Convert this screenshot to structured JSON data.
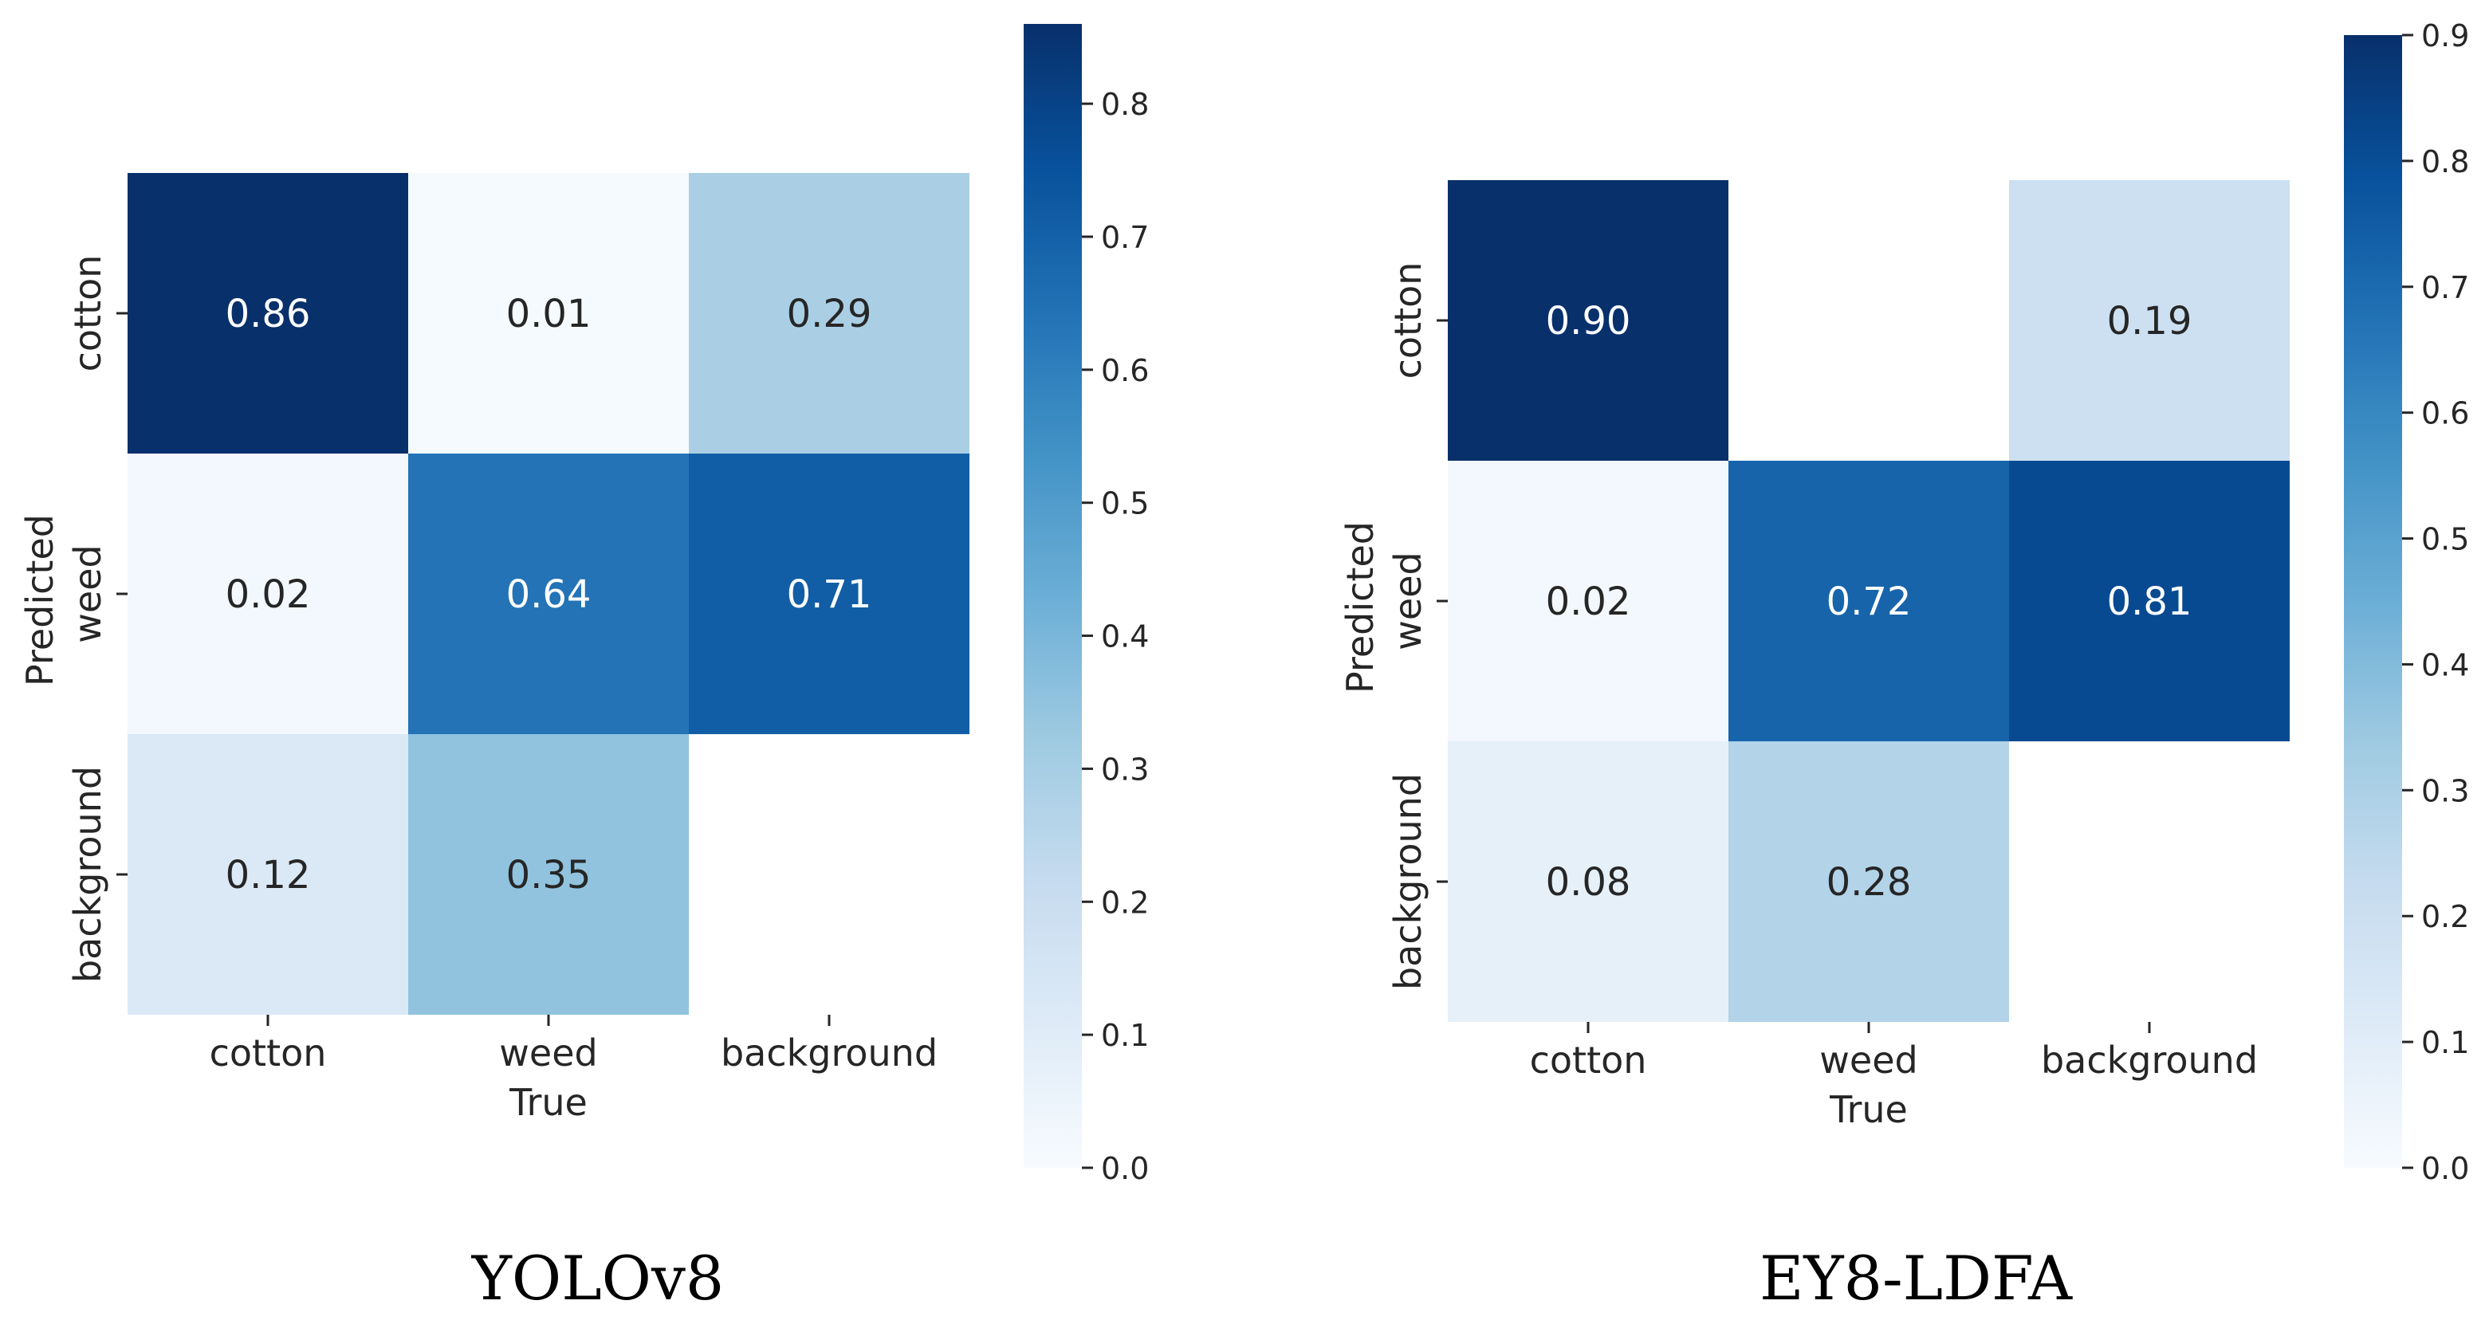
{
  "figure": {
    "panels": [
      {
        "caption": "YOLOv8"
      },
      {
        "caption": "EY8-LDFA"
      }
    ]
  },
  "colors": {
    "cmap": [
      "#f7fbff",
      "#deebf7",
      "#c6dbef",
      "#9ecae1",
      "#6baed6",
      "#4292c6",
      "#2171b5",
      "#08519c",
      "#08306b"
    ],
    "text_dark": "#262626",
    "text_light": "#ffffff",
    "axis": "#262626",
    "background": "#ffffff"
  },
  "chart_data": [
    {
      "type": "heatmap",
      "title": "YOLOv8",
      "xlabel": "True",
      "ylabel": "Predicted",
      "x_categories": [
        "cotton",
        "weed",
        "background"
      ],
      "y_categories": [
        "cotton",
        "weed",
        "background"
      ],
      "values": [
        [
          0.86,
          0.01,
          0.29
        ],
        [
          0.02,
          0.64,
          0.71
        ],
        [
          0.12,
          0.35,
          null
        ]
      ],
      "cell_labels": [
        [
          "0.86",
          "0.01",
          "0.29"
        ],
        [
          "0.02",
          "0.64",
          "0.71"
        ],
        [
          "0.12",
          "0.35",
          ""
        ]
      ],
      "colorbar": {
        "vmin": 0.0,
        "vmax": 0.86,
        "ticks": [
          0.0,
          0.1,
          0.2,
          0.3,
          0.4,
          0.5,
          0.6,
          0.7,
          0.8
        ],
        "tick_labels": [
          "0.0",
          "0.1",
          "0.2",
          "0.3",
          "0.4",
          "0.5",
          "0.6",
          "0.7",
          "0.8"
        ]
      }
    },
    {
      "type": "heatmap",
      "title": "EY8-LDFA",
      "xlabel": "True",
      "ylabel": "Predicted",
      "x_categories": [
        "cotton",
        "weed",
        "background"
      ],
      "y_categories": [
        "cotton",
        "weed",
        "background"
      ],
      "values": [
        [
          0.9,
          null,
          0.19
        ],
        [
          0.02,
          0.72,
          0.81
        ],
        [
          0.08,
          0.28,
          null
        ]
      ],
      "cell_labels": [
        [
          "0.90",
          "",
          "0.19"
        ],
        [
          "0.02",
          "0.72",
          "0.81"
        ],
        [
          "0.08",
          "0.28",
          ""
        ]
      ],
      "colorbar": {
        "vmin": 0.0,
        "vmax": 0.9,
        "ticks": [
          0.0,
          0.1,
          0.2,
          0.3,
          0.4,
          0.5,
          0.6,
          0.7,
          0.8,
          0.9
        ],
        "tick_labels": [
          "0.0",
          "0.1",
          "0.2",
          "0.3",
          "0.4",
          "0.5",
          "0.6",
          "0.7",
          "0.8",
          "0.9"
        ]
      }
    }
  ]
}
